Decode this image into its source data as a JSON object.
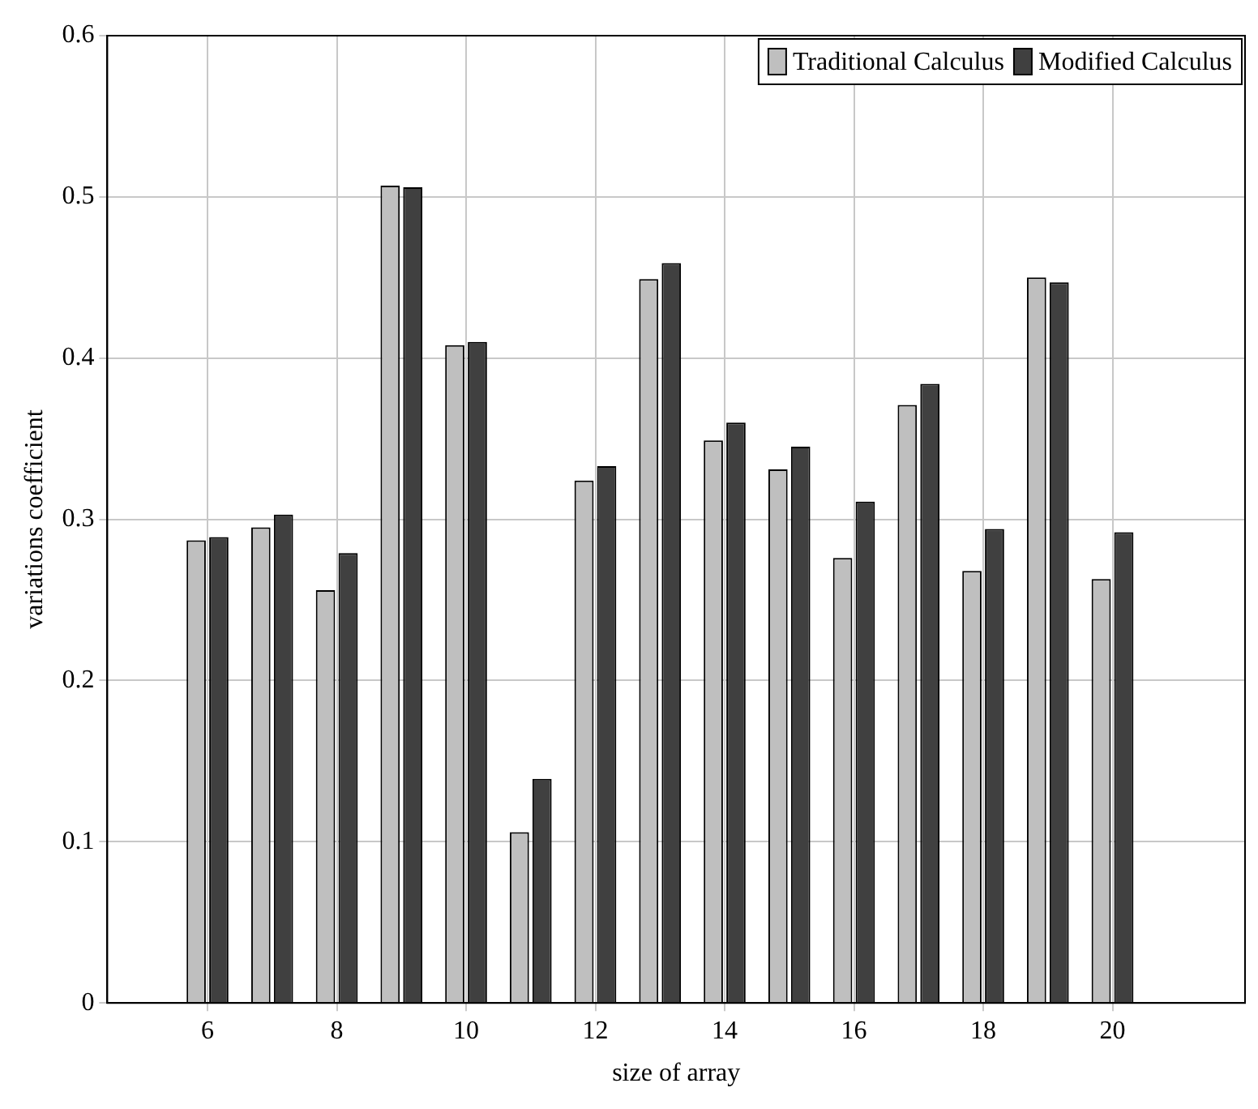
{
  "chart_data": {
    "type": "bar",
    "xlabel": "size of array",
    "ylabel": "variations coefficient",
    "x": [
      6,
      7,
      8,
      9,
      10,
      11,
      12,
      13,
      14,
      15,
      16,
      17,
      18,
      19,
      20
    ],
    "series": [
      {
        "name": "Traditional Calculus",
        "color": "#bfbfbf",
        "values": [
          0.287,
          0.295,
          0.256,
          0.507,
          0.408,
          0.106,
          0.324,
          0.449,
          0.349,
          0.331,
          0.276,
          0.371,
          0.268,
          0.45,
          0.263
        ]
      },
      {
        "name": "Modified Calculus",
        "color": "#404040",
        "values": [
          0.289,
          0.303,
          0.279,
          0.506,
          0.41,
          0.139,
          0.333,
          0.459,
          0.36,
          0.345,
          0.311,
          0.384,
          0.294,
          0.447,
          0.292
        ]
      }
    ],
    "xlim": [
      4.45,
      22.05
    ],
    "xticks": [
      6,
      8,
      10,
      12,
      14,
      16,
      18,
      20
    ],
    "ylim": [
      0,
      0.6
    ],
    "yticks": [
      0,
      0.1,
      0.2,
      0.3,
      0.4,
      0.5,
      0.6
    ],
    "grid": true,
    "legend": "top right"
  }
}
